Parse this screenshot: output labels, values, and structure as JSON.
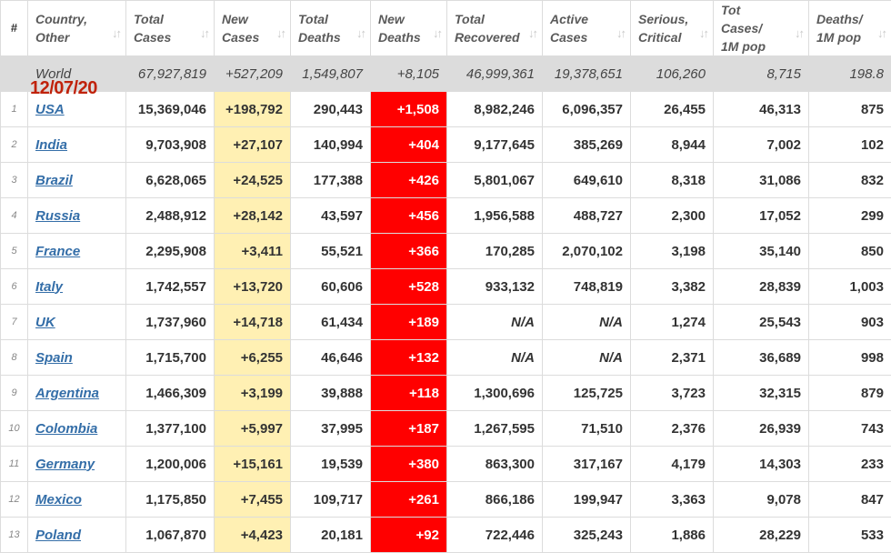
{
  "headers": {
    "num": "#",
    "country": "Country,\nOther",
    "total_cases": "Total\nCases",
    "new_cases": "New\nCases",
    "total_deaths": "Total\nDeaths",
    "new_deaths": "New\nDeaths",
    "total_recovered": "Total\nRecovered",
    "active_cases": "Active\nCases",
    "serious_critical": "Serious,\nCritical",
    "tot_cases_1m": "Tot Cases/\n1M pop",
    "deaths_1m": "Deaths/\n1M pop"
  },
  "sort_icon": "sort-arrows-icon",
  "sort_glyph": "↓↑",
  "date_overlay": "12/07/20",
  "world": {
    "label": "World",
    "total_cases": "67,927,819",
    "new_cases": "+527,209",
    "total_deaths": "1,549,807",
    "new_deaths": "+8,105",
    "total_recovered": "46,999,361",
    "active_cases": "19,378,651",
    "serious_critical": "106,260",
    "tot_cases_1m": "8,715",
    "deaths_1m": "198.8"
  },
  "colors": {
    "new_cases_bg": "#fff0b3",
    "new_deaths_bg": "#ff0000",
    "link": "#346ea8",
    "world_bg": "#dcdcdc",
    "date_overlay": "#c0220a"
  },
  "rows": [
    {
      "idx": "1",
      "country": "USA",
      "total_cases": "15,369,046",
      "new_cases": "+198,792",
      "total_deaths": "290,443",
      "new_deaths": "+1,508",
      "total_recovered": "8,982,246",
      "active_cases": "6,096,357",
      "serious_critical": "26,455",
      "tot_cases_1m": "46,313",
      "deaths_1m": "875"
    },
    {
      "idx": "2",
      "country": "India",
      "total_cases": "9,703,908",
      "new_cases": "+27,107",
      "total_deaths": "140,994",
      "new_deaths": "+404",
      "total_recovered": "9,177,645",
      "active_cases": "385,269",
      "serious_critical": "8,944",
      "tot_cases_1m": "7,002",
      "deaths_1m": "102"
    },
    {
      "idx": "3",
      "country": "Brazil",
      "total_cases": "6,628,065",
      "new_cases": "+24,525",
      "total_deaths": "177,388",
      "new_deaths": "+426",
      "total_recovered": "5,801,067",
      "active_cases": "649,610",
      "serious_critical": "8,318",
      "tot_cases_1m": "31,086",
      "deaths_1m": "832"
    },
    {
      "idx": "4",
      "country": "Russia",
      "total_cases": "2,488,912",
      "new_cases": "+28,142",
      "total_deaths": "43,597",
      "new_deaths": "+456",
      "total_recovered": "1,956,588",
      "active_cases": "488,727",
      "serious_critical": "2,300",
      "tot_cases_1m": "17,052",
      "deaths_1m": "299"
    },
    {
      "idx": "5",
      "country": "France",
      "total_cases": "2,295,908",
      "new_cases": "+3,411",
      "total_deaths": "55,521",
      "new_deaths": "+366",
      "total_recovered": "170,285",
      "active_cases": "2,070,102",
      "serious_critical": "3,198",
      "tot_cases_1m": "35,140",
      "deaths_1m": "850"
    },
    {
      "idx": "6",
      "country": "Italy",
      "total_cases": "1,742,557",
      "new_cases": "+13,720",
      "total_deaths": "60,606",
      "new_deaths": "+528",
      "total_recovered": "933,132",
      "active_cases": "748,819",
      "serious_critical": "3,382",
      "tot_cases_1m": "28,839",
      "deaths_1m": "1,003"
    },
    {
      "idx": "7",
      "country": "UK",
      "total_cases": "1,737,960",
      "new_cases": "+14,718",
      "total_deaths": "61,434",
      "new_deaths": "+189",
      "total_recovered": "N/A",
      "active_cases": "N/A",
      "serious_critical": "1,274",
      "tot_cases_1m": "25,543",
      "deaths_1m": "903"
    },
    {
      "idx": "8",
      "country": "Spain",
      "total_cases": "1,715,700",
      "new_cases": "+6,255",
      "total_deaths": "46,646",
      "new_deaths": "+132",
      "total_recovered": "N/A",
      "active_cases": "N/A",
      "serious_critical": "2,371",
      "tot_cases_1m": "36,689",
      "deaths_1m": "998"
    },
    {
      "idx": "9",
      "country": "Argentina",
      "total_cases": "1,466,309",
      "new_cases": "+3,199",
      "total_deaths": "39,888",
      "new_deaths": "+118",
      "total_recovered": "1,300,696",
      "active_cases": "125,725",
      "serious_critical": "3,723",
      "tot_cases_1m": "32,315",
      "deaths_1m": "879"
    },
    {
      "idx": "10",
      "country": "Colombia",
      "total_cases": "1,377,100",
      "new_cases": "+5,997",
      "total_deaths": "37,995",
      "new_deaths": "+187",
      "total_recovered": "1,267,595",
      "active_cases": "71,510",
      "serious_critical": "2,376",
      "tot_cases_1m": "26,939",
      "deaths_1m": "743"
    },
    {
      "idx": "11",
      "country": "Germany",
      "total_cases": "1,200,006",
      "new_cases": "+15,161",
      "total_deaths": "19,539",
      "new_deaths": "+380",
      "total_recovered": "863,300",
      "active_cases": "317,167",
      "serious_critical": "4,179",
      "tot_cases_1m": "14,303",
      "deaths_1m": "233"
    },
    {
      "idx": "12",
      "country": "Mexico",
      "total_cases": "1,175,850",
      "new_cases": "+7,455",
      "total_deaths": "109,717",
      "new_deaths": "+261",
      "total_recovered": "866,186",
      "active_cases": "199,947",
      "serious_critical": "3,363",
      "tot_cases_1m": "9,078",
      "deaths_1m": "847"
    },
    {
      "idx": "13",
      "country": "Poland",
      "total_cases": "1,067,870",
      "new_cases": "+4,423",
      "total_deaths": "20,181",
      "new_deaths": "+92",
      "total_recovered": "722,446",
      "active_cases": "325,243",
      "serious_critical": "1,886",
      "tot_cases_1m": "28,229",
      "deaths_1m": "533"
    }
  ]
}
